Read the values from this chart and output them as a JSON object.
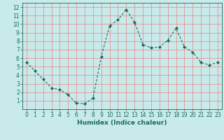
{
  "x": [
    0,
    1,
    2,
    3,
    4,
    5,
    6,
    7,
    8,
    9,
    10,
    11,
    12,
    13,
    14,
    15,
    16,
    17,
    18,
    19,
    20,
    21,
    22,
    23
  ],
  "y": [
    5.5,
    4.5,
    3.5,
    2.5,
    2.3,
    1.7,
    0.7,
    0.65,
    1.3,
    6.2,
    9.8,
    10.5,
    11.7,
    10.2,
    7.6,
    7.2,
    7.3,
    8.1,
    9.5,
    7.3,
    6.7,
    5.5,
    5.2,
    5.5
  ],
  "line_color": "#1a6b5a",
  "marker": "D",
  "marker_size": 2.0,
  "bg_color": "#c8eaea",
  "grid_color": "#f08080",
  "xlabel": "Humidex (Indice chaleur)",
  "xlim": [
    -0.5,
    23.5
  ],
  "ylim": [
    0,
    12.5
  ],
  "yticks": [
    1,
    2,
    3,
    4,
    5,
    6,
    7,
    8,
    9,
    10,
    11,
    12
  ],
  "xticks": [
    0,
    1,
    2,
    3,
    4,
    5,
    6,
    7,
    8,
    9,
    10,
    11,
    12,
    13,
    14,
    15,
    16,
    17,
    18,
    19,
    20,
    21,
    22,
    23
  ],
  "xlabel_fontsize": 6.5,
  "tick_fontsize": 5.5
}
